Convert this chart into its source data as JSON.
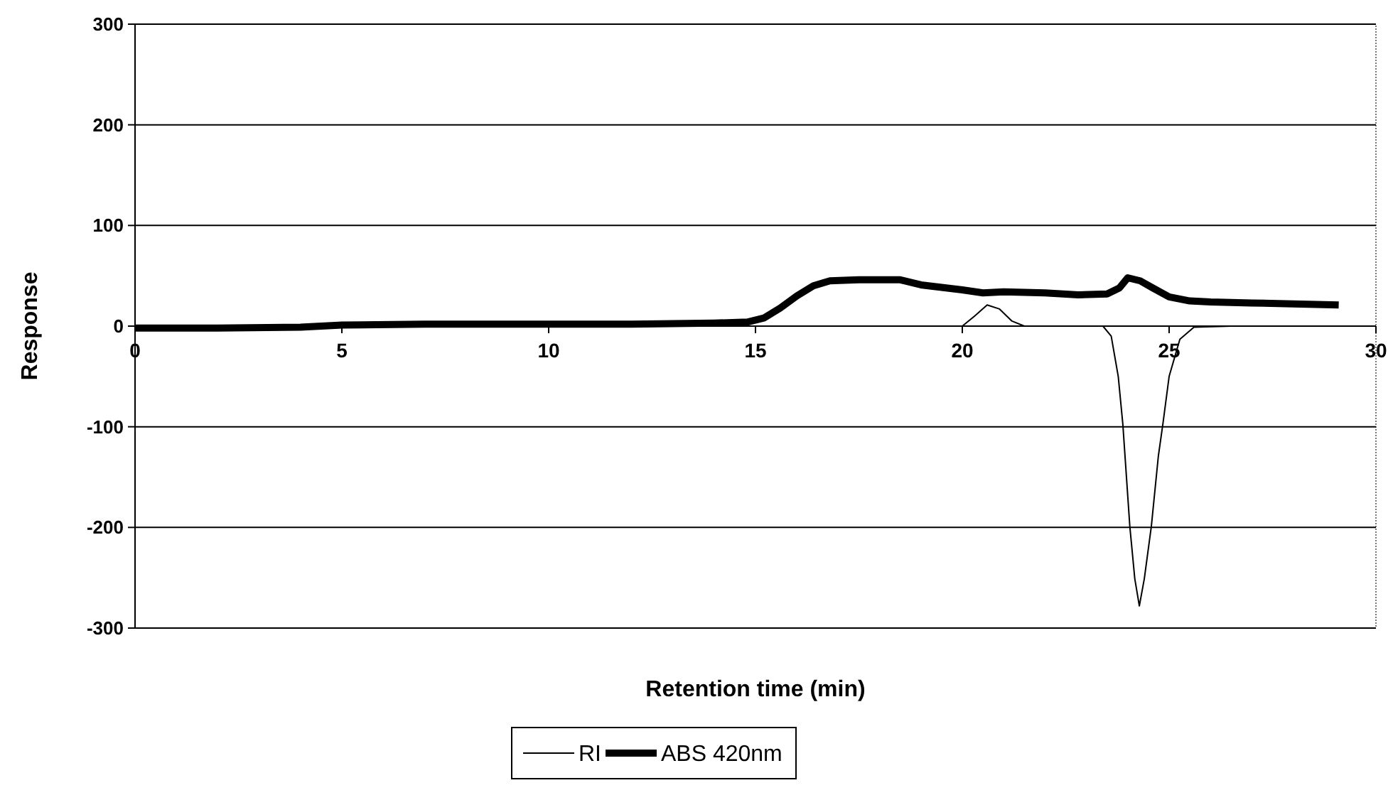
{
  "chart_data": {
    "type": "line",
    "xlabel": "Retention time (min)",
    "ylabel": "Response",
    "xlim": [
      0,
      30
    ],
    "ylim": [
      -300,
      300
    ],
    "xticks": [
      0,
      5,
      10,
      15,
      20,
      25,
      30
    ],
    "yticks": [
      -300,
      -200,
      -100,
      0,
      100,
      200,
      300
    ],
    "grid": "y",
    "legend": "bottom",
    "marker": "none",
    "series": [
      {
        "name": "RI",
        "color": "#000000",
        "x": [
          0,
          20,
          20.3,
          20.6,
          20.9,
          21.2,
          21.5,
          23.4,
          23.6,
          23.77,
          23.88,
          24.05,
          24.17,
          24.28,
          24.4,
          24.57,
          24.74,
          24.85,
          25,
          25.26,
          25.6,
          26.5
        ],
        "values": [
          0,
          0,
          10,
          21,
          17,
          5,
          0,
          0,
          -10,
          -50,
          -97,
          -199,
          -251,
          -278,
          -251,
          -199,
          -129,
          -97,
          -50,
          -13,
          -1,
          0
        ]
      },
      {
        "name": "ABS 420nm",
        "color": "#000000",
        "x": [
          0,
          2,
          4,
          5,
          7,
          10,
          12,
          14,
          14.8,
          15.2,
          15.6,
          16,
          16.4,
          16.8,
          17.5,
          18.5,
          19,
          20,
          20.5,
          21,
          22,
          22.8,
          23.5,
          23.8,
          24,
          24.3,
          24.6,
          25,
          25.5,
          26,
          27,
          28,
          29.1
        ],
        "values": [
          -2,
          -2,
          -1,
          1,
          2,
          2,
          2,
          3,
          4,
          8,
          18,
          30,
          40,
          45,
          46,
          46,
          41,
          36,
          33,
          34,
          33,
          31,
          32,
          38,
          48,
          45,
          38,
          29,
          25,
          24,
          23,
          22,
          21
        ]
      }
    ]
  }
}
